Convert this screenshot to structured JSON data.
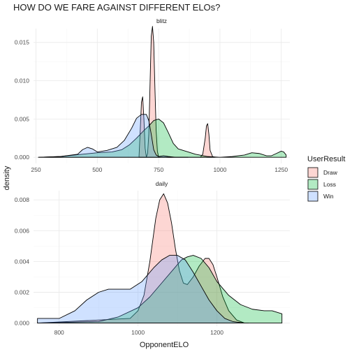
{
  "chart_data": {
    "type": "area",
    "title": "HOW DO WE FARE AGAINST DIFFERENT ELOs?",
    "xlabel": "OpponentELO",
    "ylabel": "density",
    "legend": {
      "title": "UserResult",
      "position": "right",
      "items": [
        {
          "name": "Draw",
          "color": "#F8766D"
        },
        {
          "name": "Loss",
          "color": "#00BA38"
        },
        {
          "name": "Win",
          "color": "#619CFF"
        }
      ]
    },
    "fill_opacity": 0.3,
    "grid": true,
    "panels": [
      {
        "strip": "blitz",
        "xlim": [
          240,
          1285
        ],
        "ylim": [
          -0.0008,
          0.0168
        ],
        "xticks": [
          250,
          500,
          750,
          1000,
          1250
        ],
        "xtick_labels": [
          "250",
          "500",
          "750",
          "1000",
          "1250"
        ],
        "yticks": [
          0,
          0.005,
          0.01,
          0.015
        ],
        "ytick_labels": [
          "0.000",
          "0.005",
          "0.010",
          "0.015"
        ],
        "series": [
          {
            "name": "Draw",
            "x": [
              670,
              675,
              680,
              685,
              690,
              695,
              700,
              705,
              710,
              715,
              720,
              725,
              730,
              735,
              740,
              745,
              750,
              920,
              930,
              940,
              945,
              950,
              955,
              960,
              970,
              980
            ],
            "y": [
              0,
              0.0035,
              0.0072,
              0.0079,
              0.005,
              0.0012,
              0,
              0.0005,
              0.003,
              0.0095,
              0.0158,
              0.0171,
              0.015,
              0.009,
              0.0035,
              0.0008,
              0,
              0,
              0.0004,
              0.0025,
              0.0041,
              0.0044,
              0.003,
              0.0009,
              0.0001,
              0
            ]
          },
          {
            "name": "Loss",
            "x": [
              260,
              350,
              440,
              500,
              560,
              600,
              630,
              660,
              690,
              710,
              730,
              750,
              770,
              790,
              810,
              830,
              860,
              900,
              950,
              1000,
              1050,
              1100,
              1130,
              1160,
              1190,
              1210,
              1230,
              1250,
              1260,
              1270
            ],
            "y": [
              0,
              0.0001,
              0.0004,
              0.0006,
              0.0007,
              0.001,
              0.0016,
              0.0025,
              0.0035,
              0.0041,
              0.0048,
              0.005,
              0.0045,
              0.0032,
              0.0018,
              0.0011,
              0.0008,
              0.0004,
              0.0001,
              0,
              0.0001,
              0.0003,
              0.0006,
              0.0005,
              0.0002,
              0.0002,
              0.0005,
              0.0008,
              0.0007,
              0.0003
            ]
          },
          {
            "name": "Win",
            "x": [
              260,
              350,
              420,
              440,
              460,
              480,
              500,
              540,
              580,
              610,
              640,
              660,
              680,
              700,
              710,
              720,
              730,
              740,
              750,
              770,
              790,
              820,
              870
            ],
            "y": [
              0,
              0.0001,
              0.0004,
              0.001,
              0.0013,
              0.0011,
              0.0007,
              0.0009,
              0.0013,
              0.0022,
              0.0038,
              0.0051,
              0.0056,
              0.0056,
              0.0048,
              0.003,
              0.001,
              0.0003,
              0.0001,
              0.0002,
              0.0001,
              0,
              0
            ]
          }
        ]
      },
      {
        "strip": "daily",
        "xlim": [
          735,
          1385
        ],
        "ylim": [
          -0.0002,
          0.0086
        ],
        "xticks": [
          800,
          1000,
          1200
        ],
        "xtick_labels": [
          "800",
          "1000",
          "1200"
        ],
        "yticks": [
          0,
          0.002,
          0.004,
          0.006,
          0.008
        ],
        "ytick_labels": [
          "0.000",
          "0.002",
          "0.004",
          "0.006",
          "0.008"
        ],
        "series": [
          {
            "name": "Draw",
            "x": [
              745,
              980,
              1000,
              1015,
              1030,
              1045,
              1055,
              1065,
              1075,
              1085,
              1095,
              1105,
              1115,
              1125,
              1140,
              1155,
              1170,
              1180,
              1190,
              1200,
              1215,
              1230,
              1250,
              1270,
              1280
            ],
            "y": [
              0,
              0.0003,
              0.0008,
              0.0018,
              0.004,
              0.0068,
              0.008,
              0.0084,
              0.0078,
              0.0065,
              0.0048,
              0.0034,
              0.0026,
              0.0025,
              0.003,
              0.0037,
              0.0042,
              0.0042,
              0.0038,
              0.003,
              0.0017,
              0.0008,
              0.0002,
              0,
              0
            ]
          },
          {
            "name": "Loss",
            "x": [
              745,
              900,
              950,
              1000,
              1030,
              1060,
              1090,
              1110,
              1125,
              1140,
              1160,
              1180,
              1200,
              1230,
              1260,
              1290,
              1320,
              1340,
              1365
            ],
            "y": [
              0,
              0.0001,
              0.0004,
              0.001,
              0.0017,
              0.0026,
              0.0035,
              0.0041,
              0.0043,
              0.0044,
              0.0042,
              0.0036,
              0.0027,
              0.0018,
              0.0012,
              0.0009,
              0.0008,
              0.0008,
              0.0006
            ]
          },
          {
            "name": "Win",
            "x": [
              745,
              800,
              840,
              870,
              900,
              925,
              950,
              980,
              1010,
              1040,
              1060,
              1080,
              1100,
              1120,
              1140,
              1160,
              1180,
              1200,
              1220,
              1240,
              1270
            ],
            "y": [
              0.0003,
              0.0003,
              0.0008,
              0.0015,
              0.002,
              0.0022,
              0.0022,
              0.0022,
              0.0027,
              0.0036,
              0.0041,
              0.0044,
              0.0044,
              0.0041,
              0.0033,
              0.0024,
              0.0015,
              0.0008,
              0.0003,
              0.0001,
              0
            ]
          }
        ]
      }
    ]
  }
}
